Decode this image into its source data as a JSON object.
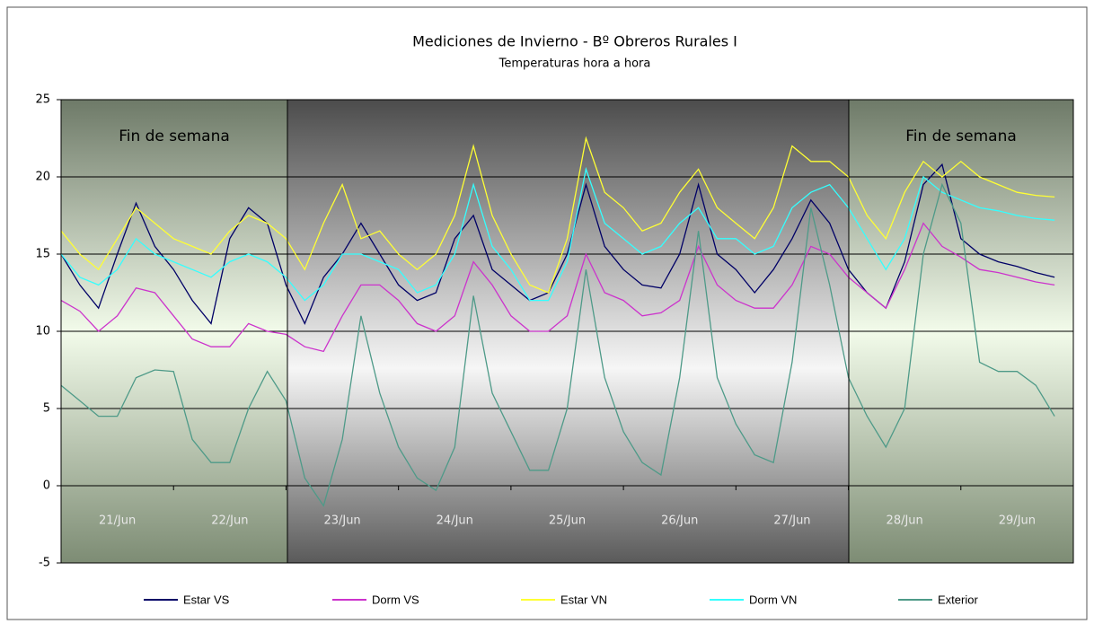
{
  "chart_data": {
    "type": "line",
    "title": "Mediciones de Invierno - Bº Obreros Rurales I",
    "subtitle": "Temperaturas hora a hora",
    "annotations": [
      "Fin de semana",
      "Fin de semana"
    ],
    "categories": [
      null,
      null,
      null,
      "21/Jun",
      null,
      null,
      null,
      null,
      null,
      "22/Jun",
      null,
      null,
      null,
      null,
      null,
      "23/Jun",
      null,
      null,
      null,
      null,
      null,
      "24/Jun",
      null,
      null,
      null,
      null,
      null,
      "25/Jun",
      null,
      null,
      null,
      null,
      null,
      "26/Jun",
      null,
      null,
      null,
      null,
      null,
      "27/Jun",
      null,
      null,
      null,
      null,
      null,
      "28/Jun",
      null,
      null,
      null,
      null,
      null,
      "29/Jun",
      null,
      null
    ],
    "ylim": [
      -5,
      25
    ],
    "yticks": [
      -5,
      0,
      5,
      10,
      15,
      20,
      25
    ],
    "grid": true,
    "series": [
      {
        "name": "Estar VS",
        "color": "#000066",
        "values": [
          15,
          13,
          11.5,
          15,
          18.3,
          15.5,
          14,
          12,
          10.5,
          16,
          18,
          17,
          13,
          10.5,
          13.5,
          15,
          17,
          15,
          13,
          12,
          12.5,
          16,
          17.5,
          14,
          13,
          12,
          12.5,
          15,
          19.5,
          15.5,
          14,
          13,
          12.8,
          15,
          19.5,
          15,
          14,
          12.5,
          14,
          16,
          18.5,
          17,
          14,
          12.5,
          11.5,
          14.5,
          19.5,
          20.8,
          16,
          15,
          14.5,
          14.2,
          13.8,
          13.5
        ]
      },
      {
        "name": "Dorm VS",
        "color": "#cc33cc",
        "values": [
          12,
          11.3,
          10,
          11,
          12.8,
          12.5,
          11,
          9.5,
          9,
          9,
          10.5,
          10,
          9.8,
          9,
          8.7,
          11,
          13,
          13,
          12,
          10.5,
          10,
          11,
          14.5,
          13,
          11,
          10,
          10,
          11,
          15,
          12.5,
          12,
          11,
          11.2,
          12,
          15.5,
          13,
          12,
          11.5,
          11.5,
          13,
          15.5,
          15,
          13.5,
          12.5,
          11.5,
          14,
          17,
          15.5,
          14.8,
          14,
          13.8,
          13.5,
          13.2,
          13
        ]
      },
      {
        "name": "Estar VN",
        "color": "#ffff33",
        "values": [
          16.5,
          15,
          14,
          16,
          18,
          17,
          16,
          15.5,
          15,
          16.5,
          17.5,
          17,
          16,
          14,
          17,
          19.5,
          16,
          16.5,
          15,
          14,
          15,
          17.5,
          22,
          17.5,
          15,
          13,
          12.5,
          16,
          22.5,
          19,
          18,
          16.5,
          17,
          19,
          20.5,
          18,
          17,
          16,
          18,
          22,
          21,
          21,
          20,
          17.5,
          16,
          19,
          21,
          20,
          21,
          20,
          19.5,
          19,
          18.8,
          18.7
        ]
      },
      {
        "name": "Dorm VN",
        "color": "#33ffff",
        "values": [
          15,
          13.5,
          13,
          14,
          16,
          15,
          14.5,
          14,
          13.5,
          14.5,
          15,
          14.5,
          13.5,
          12,
          13,
          15,
          15,
          14.5,
          14,
          12.5,
          13,
          15,
          19.5,
          15.5,
          14,
          12,
          12,
          14.5,
          20.5,
          17,
          16,
          15,
          15.5,
          17,
          18,
          16,
          16,
          15,
          15.5,
          18,
          19,
          19.5,
          18,
          16,
          14,
          16,
          20,
          19,
          18.5,
          18,
          17.8,
          17.5,
          17.3,
          17.2
        ]
      },
      {
        "name": "Exterior",
        "color": "#4e9a88",
        "values": [
          6.5,
          5.5,
          4.5,
          4.5,
          7,
          7.5,
          7.4,
          3,
          1.5,
          1.5,
          5,
          7.4,
          5.5,
          0.5,
          -1.3,
          3,
          11,
          6,
          2.5,
          0.5,
          -0.3,
          2.5,
          12.3,
          6,
          3.5,
          1,
          1,
          5,
          14,
          7,
          3.5,
          1.5,
          0.7,
          7,
          16.5,
          7,
          4,
          2,
          1.5,
          8,
          18,
          13,
          7,
          4.5,
          2.5,
          5,
          15,
          19.5,
          17,
          8,
          7.4,
          7.4,
          6.5,
          4.5
        ]
      }
    ]
  }
}
